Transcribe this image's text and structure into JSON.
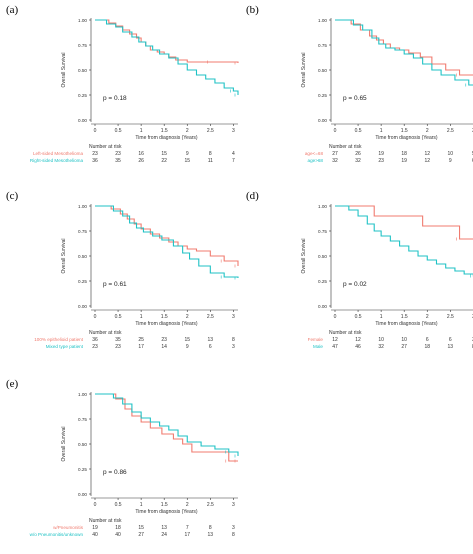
{
  "chart_data": [
    {
      "type": "line",
      "panel_label": "(a)",
      "ylabel": "Overall Survival",
      "xlabel": "Time from diagnosis (Years)",
      "ylim": [
        0,
        1
      ],
      "xlim": [
        0,
        3.1
      ],
      "x_ticks": [
        "0",
        "0.5",
        "1",
        "1.5",
        "2",
        "2.5",
        "3"
      ],
      "y_ticks": [
        "0.00",
        "0.25",
        "0.50",
        "0.75",
        "1.00"
      ],
      "p_value": "p = 0.18",
      "risk_title": "Number at risk",
      "series": [
        {
          "name": "Left-sided Mesothelioma",
          "color": "#f07b6f",
          "x": [
            0,
            0.3,
            0.45,
            0.6,
            0.75,
            0.9,
            1.0,
            1.1,
            1.2,
            1.35,
            1.5,
            1.6,
            1.75,
            2.0,
            2.5,
            3.1
          ],
          "y": [
            1.0,
            0.97,
            0.94,
            0.9,
            0.86,
            0.82,
            0.78,
            0.74,
            0.7,
            0.68,
            0.66,
            0.63,
            0.6,
            0.58,
            0.58,
            0.57
          ],
          "risk": [
            "23",
            "23",
            "16",
            "15",
            "9",
            "8",
            "4"
          ]
        },
        {
          "name": "Right-sided Mesothelioma",
          "color": "#1fc2c5",
          "x": [
            0,
            0.25,
            0.45,
            0.6,
            0.8,
            0.95,
            1.1,
            1.25,
            1.4,
            1.6,
            1.8,
            2.0,
            2.2,
            2.4,
            2.6,
            2.8,
            3.0,
            3.1
          ],
          "y": [
            1.0,
            0.96,
            0.93,
            0.88,
            0.83,
            0.78,
            0.74,
            0.7,
            0.66,
            0.62,
            0.56,
            0.5,
            0.45,
            0.41,
            0.37,
            0.32,
            0.29,
            0.25
          ],
          "risk": [
            "36",
            "35",
            "26",
            "22",
            "15",
            "11",
            "7"
          ]
        }
      ]
    },
    {
      "type": "line",
      "panel_label": "(b)",
      "ylabel": "Overall Survival",
      "xlabel": "Time from diagnosis (Years)",
      "ylim": [
        0,
        1
      ],
      "xlim": [
        0,
        3.1
      ],
      "x_ticks": [
        "0",
        "0.5",
        "1",
        "1.5",
        "2",
        "2.5",
        "3"
      ],
      "y_ticks": [
        "0.00",
        "0.25",
        "0.50",
        "0.75",
        "1.00"
      ],
      "p_value": "p = 0.65",
      "risk_title": "Number at risk",
      "series": [
        {
          "name": "age<=68",
          "color": "#f07b6f",
          "x": [
            0,
            0.35,
            0.55,
            0.75,
            0.9,
            1.05,
            1.2,
            1.4,
            1.6,
            1.85,
            2.1,
            2.4,
            2.7,
            3.1
          ],
          "y": [
            1.0,
            0.96,
            0.9,
            0.84,
            0.8,
            0.76,
            0.72,
            0.7,
            0.67,
            0.63,
            0.56,
            0.5,
            0.45,
            0.43
          ],
          "risk": [
            "27",
            "26",
            "19",
            "18",
            "12",
            "10",
            "5"
          ]
        },
        {
          "name": "age>68",
          "color": "#1fc2c5",
          "x": [
            0,
            0.4,
            0.6,
            0.8,
            0.95,
            1.1,
            1.3,
            1.5,
            1.7,
            1.9,
            2.1,
            2.3,
            2.6,
            2.9,
            3.1
          ],
          "y": [
            1.0,
            0.95,
            0.9,
            0.82,
            0.76,
            0.72,
            0.7,
            0.66,
            0.62,
            0.56,
            0.5,
            0.45,
            0.4,
            0.35,
            0.28
          ],
          "risk": [
            "32",
            "32",
            "23",
            "19",
            "12",
            "9",
            "6"
          ]
        }
      ]
    },
    {
      "type": "line",
      "panel_label": "(c)",
      "ylabel": "Overall Survival",
      "xlabel": "Time from diagnosis (Years)",
      "ylim": [
        0,
        1
      ],
      "xlim": [
        0,
        3.1
      ],
      "x_ticks": [
        "0",
        "0.5",
        "1",
        "1.5",
        "2",
        "2.5",
        "3"
      ],
      "y_ticks": [
        "0.00",
        "0.25",
        "0.50",
        "0.75",
        "1.00"
      ],
      "p_value": "p = 0.61",
      "risk_title": "Number at risk",
      "series": [
        {
          "name": "100% epithelioid patient",
          "color": "#f07b6f",
          "x": [
            0,
            0.35,
            0.55,
            0.7,
            0.85,
            1.0,
            1.2,
            1.4,
            1.6,
            1.8,
            2.0,
            2.2,
            2.5,
            2.8,
            3.1
          ],
          "y": [
            1.0,
            0.97,
            0.92,
            0.87,
            0.82,
            0.77,
            0.72,
            0.68,
            0.64,
            0.6,
            0.57,
            0.55,
            0.5,
            0.45,
            0.4
          ],
          "risk": [
            "36",
            "35",
            "25",
            "23",
            "15",
            "13",
            "8"
          ]
        },
        {
          "name": "Mixed type patient",
          "color": "#1fc2c5",
          "x": [
            0,
            0.4,
            0.6,
            0.75,
            0.9,
            1.05,
            1.25,
            1.45,
            1.7,
            1.9,
            2.05,
            2.25,
            2.5,
            2.8,
            3.1
          ],
          "y": [
            1.0,
            0.95,
            0.9,
            0.83,
            0.78,
            0.74,
            0.7,
            0.66,
            0.6,
            0.53,
            0.47,
            0.4,
            0.33,
            0.29,
            0.28
          ],
          "risk": [
            "23",
            "23",
            "17",
            "14",
            "9",
            "6",
            "3"
          ]
        }
      ]
    },
    {
      "type": "line",
      "panel_label": "(d)",
      "ylabel": "Overall Survival",
      "xlabel": "Time from diagnosis (Years)",
      "ylim": [
        0,
        1
      ],
      "xlim": [
        0,
        3.1
      ],
      "x_ticks": [
        "0",
        "0.5",
        "1",
        "1.5",
        "2",
        "2.5",
        "3"
      ],
      "y_ticks": [
        "0.00",
        "0.25",
        "0.50",
        "0.75",
        "1.00"
      ],
      "p_value": "p = 0.02",
      "risk_title": "Number at risk",
      "series": [
        {
          "name": "Female",
          "color": "#f07b6f",
          "x": [
            0,
            0.85,
            1.9,
            2.7,
            3.1
          ],
          "y": [
            1.0,
            0.9,
            0.8,
            0.67,
            0.67
          ],
          "risk": [
            "12",
            "12",
            "10",
            "10",
            "6",
            "6",
            "3"
          ]
        },
        {
          "name": "Male",
          "color": "#1fc2c5",
          "x": [
            0,
            0.3,
            0.5,
            0.7,
            0.85,
            1.0,
            1.2,
            1.4,
            1.6,
            1.8,
            2.0,
            2.2,
            2.4,
            2.6,
            2.8,
            3.0,
            3.1
          ],
          "y": [
            1.0,
            0.96,
            0.9,
            0.82,
            0.75,
            0.7,
            0.65,
            0.6,
            0.55,
            0.5,
            0.46,
            0.42,
            0.38,
            0.35,
            0.32,
            0.3,
            0.28
          ],
          "risk": [
            "47",
            "46",
            "32",
            "27",
            "18",
            "13",
            "8"
          ]
        }
      ]
    },
    {
      "type": "line",
      "panel_label": "(e)",
      "ylabel": "Overall Survival",
      "xlabel": "Time from diagnosis (Years)",
      "ylim": [
        0,
        1
      ],
      "xlim": [
        0,
        3.1
      ],
      "x_ticks": [
        "0",
        "0.5",
        "1",
        "1.5",
        "2",
        "2.5",
        "3"
      ],
      "y_ticks": [
        "0.00",
        "0.25",
        "0.50",
        "0.75",
        "1.00"
      ],
      "p_value": "p = 0.86",
      "risk_title": "Number at risk",
      "series": [
        {
          "name": "w/Pneumonitis",
          "color": "#f07b6f",
          "x": [
            0,
            0.45,
            0.65,
            0.8,
            1.0,
            1.2,
            1.45,
            1.7,
            1.9,
            2.1,
            2.5,
            2.9,
            3.1
          ],
          "y": [
            1.0,
            0.95,
            0.85,
            0.78,
            0.72,
            0.66,
            0.6,
            0.55,
            0.5,
            0.42,
            0.42,
            0.33,
            0.33
          ],
          "risk": [
            "19",
            "18",
            "15",
            "13",
            "7",
            "8",
            "3"
          ]
        },
        {
          "name": "w/o Pneumonitis/unknown",
          "color": "#1fc2c5",
          "x": [
            0,
            0.4,
            0.6,
            0.8,
            1.0,
            1.2,
            1.4,
            1.6,
            1.8,
            2.0,
            2.3,
            2.6,
            2.9,
            3.1
          ],
          "y": [
            1.0,
            0.96,
            0.9,
            0.82,
            0.76,
            0.72,
            0.68,
            0.64,
            0.58,
            0.52,
            0.48,
            0.45,
            0.42,
            0.38
          ],
          "risk": [
            "40",
            "40",
            "27",
            "24",
            "17",
            "13",
            "8"
          ]
        }
      ]
    }
  ]
}
